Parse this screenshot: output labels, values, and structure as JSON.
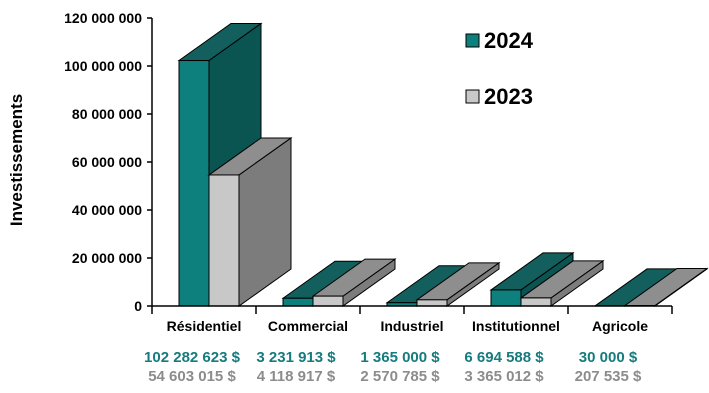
{
  "chart_data": {
    "type": "bar",
    "title": "",
    "xlabel": "",
    "ylabel": "Investissements",
    "ylim": [
      0,
      120000000
    ],
    "yticks": [
      0,
      20000000,
      40000000,
      60000000,
      80000000,
      100000000,
      120000000
    ],
    "ytick_labels": [
      "0",
      "20 000 000",
      "40 000 000",
      "60 000 000",
      "80 000 000",
      "100 000 000",
      "120 000 000"
    ],
    "categories": [
      "Résidentiel",
      "Commercial",
      "Industriel",
      "Institutionnel",
      "Agricole"
    ],
    "series": [
      {
        "name": "2024",
        "values": [
          102282623,
          3231913,
          1365000,
          6694588,
          30000
        ],
        "value_labels": [
          "102 282 623 $",
          "3 231 913 $",
          "1 365 000 $",
          "6 694 588 $",
          "30 000 $"
        ],
        "color": "#0d7f7c",
        "side_color": "#0a5452",
        "top_color": "#135f5d",
        "label_color": "#167b7d"
      },
      {
        "name": "2023",
        "values": [
          54603015,
          4118917,
          2570785,
          3365012,
          207535
        ],
        "value_labels": [
          "54 603 015 $",
          "4 118 917 $",
          "2 570 785 $",
          "3 365 012 $",
          "207 535 $"
        ],
        "color": "#c8c8c8",
        "side_color": "#7c7c7c",
        "top_color": "#8e8e8e",
        "label_color": "#8c8c8c"
      }
    ],
    "legend": "top-right",
    "grid": false,
    "style": "3d-bar"
  }
}
